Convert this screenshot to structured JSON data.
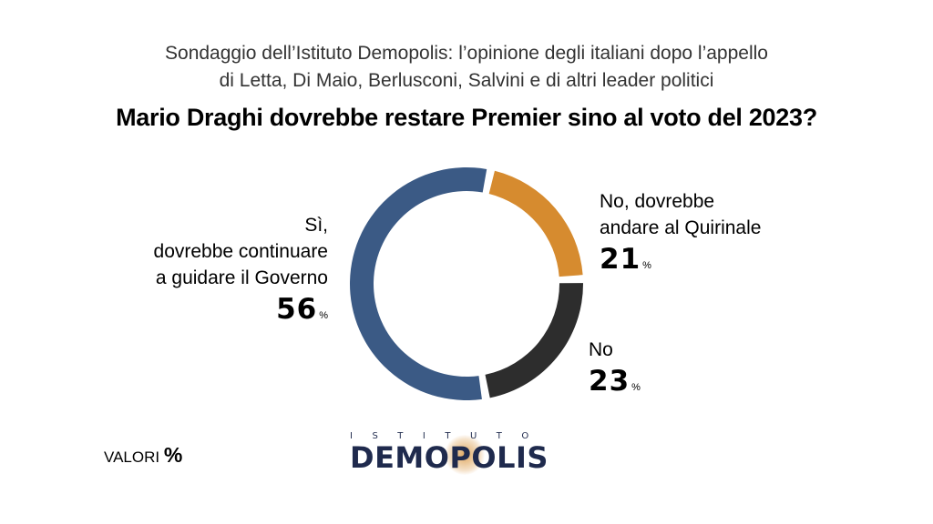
{
  "header": {
    "subtitle_line1": "Sondaggio dell’Istituto Demopolis: l’opinione degli italiani dopo l’appello",
    "subtitle_line2": "di Letta, Di Maio, Berlusconi, Salvini e di altri leader politici",
    "question": "Mario Draghi dovrebbe restare Premier sino al voto del 2023?"
  },
  "chart_data": {
    "type": "pie",
    "donut": true,
    "title": "Mario Draghi dovrebbe restare Premier sino al voto del 2023?",
    "unit": "%",
    "slices": [
      {
        "label_lines": [
          "No, dovrebbe",
          "andare al Quirinale"
        ],
        "value": 21,
        "display": "21",
        "color": "#d68b2f"
      },
      {
        "label_lines": [
          "No"
        ],
        "value": 23,
        "display": "23",
        "color": "#2d2d2d"
      },
      {
        "label_lines": [
          "Sì,",
          "dovrebbe continuare",
          "a guidare il Governo"
        ],
        "value": 56,
        "display": "56",
        "color": "#3b5a85"
      }
    ]
  },
  "footer": {
    "valori_text": "VALORI",
    "valori_symbol": "%"
  },
  "logo": {
    "top_text": "ISTITUTO",
    "main_text": "DEMOPOLIS"
  }
}
